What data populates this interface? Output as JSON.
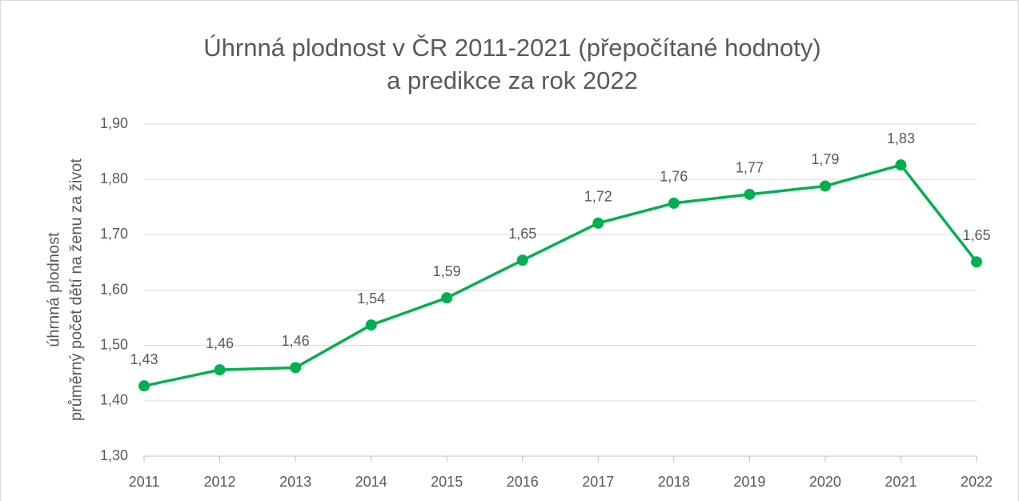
{
  "chart_data": {
    "type": "line",
    "title": [
      "Úhrnná plodnost v ČR 2011-2021 (přepočítané hodnoty)",
      "a predikce za rok 2022"
    ],
    "y_label": [
      "úhrnná plodnost",
      "průměrný počet dětí na ženu za život"
    ],
    "categories": [
      "2011",
      "2012",
      "2013",
      "2014",
      "2015",
      "2016",
      "2017",
      "2018",
      "2019",
      "2020",
      "2021",
      "2022"
    ],
    "series": [
      {
        "color": "#00b050",
        "values": [
          1.427,
          1.456,
          1.46,
          1.537,
          1.586,
          1.654,
          1.721,
          1.757,
          1.773,
          1.788,
          1.826,
          1.651
        ],
        "value_labels": [
          "1,43",
          "1,46",
          "1,46",
          "1,54",
          "1,59",
          "1,65",
          "1,72",
          "1,76",
          "1,77",
          "1,79",
          "1,83",
          "1,65"
        ]
      }
    ],
    "ylim": [
      1.3,
      1.9
    ],
    "yticks": [
      {
        "value": 1.3,
        "label": "1,30"
      },
      {
        "value": 1.4,
        "label": "1,40"
      },
      {
        "value": 1.5,
        "label": "1,50"
      },
      {
        "value": 1.6,
        "label": "1,60"
      },
      {
        "value": 1.7,
        "label": "1,70"
      },
      {
        "value": 1.8,
        "label": "1,80"
      },
      {
        "value": 1.9,
        "label": "1,90"
      }
    ],
    "grid": true
  }
}
